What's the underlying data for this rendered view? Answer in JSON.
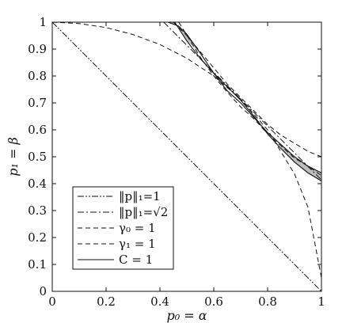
{
  "chart_data": {
    "type": "line",
    "title": "",
    "xlabel": "p₀ = α",
    "ylabel": "p₁ = β",
    "xlim": [
      0,
      1
    ],
    "ylim": [
      0,
      1
    ],
    "grid": false,
    "x_ticks": [
      "0",
      "0.2",
      "0.4",
      "0.6",
      "0.8",
      "1"
    ],
    "y_ticks": [
      "0",
      "0.1",
      "0.2",
      "0.3",
      "0.4",
      "0.5",
      "0.6",
      "0.7",
      "0.8",
      "0.9",
      "1"
    ],
    "legend_position": "bottom-left",
    "series": [
      {
        "name": "‖p‖₁=1",
        "style": "dash-dot-dot",
        "x": [
          0,
          1
        ],
        "y": [
          1,
          0
        ]
      },
      {
        "name": "‖p‖₁=√2",
        "style": "dash-dot",
        "x": [
          0.414,
          0.45,
          0.5,
          0.55,
          0.6,
          0.65,
          0.7,
          0.707,
          0.75,
          0.8,
          0.85,
          0.9,
          0.95,
          1.0
        ],
        "y": [
          1.0,
          0.964,
          0.914,
          0.864,
          0.814,
          0.764,
          0.714,
          0.707,
          0.664,
          0.614,
          0.564,
          0.514,
          0.464,
          0.414
        ]
      },
      {
        "name": "γ₀ = 1",
        "style": "dashed",
        "x": [
          0,
          0.1,
          0.2,
          0.3,
          0.4,
          0.5,
          0.6,
          0.7,
          0.8,
          0.9,
          0.95,
          1.0
        ],
        "y": [
          1,
          0.995,
          0.98,
          0.954,
          0.917,
          0.866,
          0.8,
          0.714,
          0.6,
          0.436,
          0.312,
          0.05
        ]
      },
      {
        "name": "γ₁ = 1",
        "style": "dashed",
        "x": [
          0.45,
          0.5,
          0.55,
          0.6,
          0.65,
          0.7,
          0.75,
          0.8,
          0.85,
          0.9,
          0.95,
          1.0
        ],
        "y": [
          1.0,
          0.95,
          0.89,
          0.83,
          0.77,
          0.72,
          0.67,
          0.62,
          0.58,
          0.55,
          0.52,
          0.5
        ]
      },
      {
        "name": "C = 1",
        "style": "solid",
        "x": [
          0.43,
          0.47,
          0.5,
          0.55,
          0.6,
          0.65,
          0.7,
          0.75,
          0.8,
          0.85,
          0.9,
          0.95,
          1.0
        ],
        "y": [
          1.0,
          0.985,
          0.955,
          0.885,
          0.81,
          0.745,
          0.7,
          0.645,
          0.59,
          0.545,
          0.5,
          0.465,
          0.44
        ]
      }
    ],
    "extra_curves": [
      {
        "style": "dashed",
        "x": [
          0.47,
          0.55,
          0.6,
          0.65,
          0.7,
          0.75,
          0.8,
          0.85,
          0.9,
          0.95,
          1.0
        ],
        "y": [
          1.0,
          0.87,
          0.8,
          0.74,
          0.685,
          0.64,
          0.585,
          0.54,
          0.495,
          0.465,
          0.43
        ]
      },
      {
        "style": "solid",
        "x": [
          0.455,
          0.5,
          0.55,
          0.6,
          0.65,
          0.7,
          0.75,
          0.8,
          0.85,
          0.9,
          0.95,
          1.0
        ],
        "y": [
          1.0,
          0.93,
          0.865,
          0.81,
          0.76,
          0.71,
          0.65,
          0.585,
          0.53,
          0.48,
          0.44,
          0.41
        ]
      }
    ],
    "shaded_regions": [
      {
        "fill": "#bdbdbd",
        "x": [
          0.43,
          0.47,
          0.455,
          0.5,
          0.55,
          0.5,
          0.47
        ],
        "y": [
          1.0,
          1.0,
          1.0,
          0.93,
          0.885,
          0.955,
          0.985
        ]
      },
      {
        "fill": "#bdbdbd",
        "x": [
          0.85,
          0.9,
          0.95,
          1.0,
          1.0,
          0.95,
          0.9,
          0.85
        ],
        "y": [
          0.545,
          0.5,
          0.465,
          0.44,
          0.41,
          0.44,
          0.48,
          0.53
        ]
      }
    ],
    "colors": {
      "line": "#111111",
      "shade": "#bdbdbd"
    }
  }
}
